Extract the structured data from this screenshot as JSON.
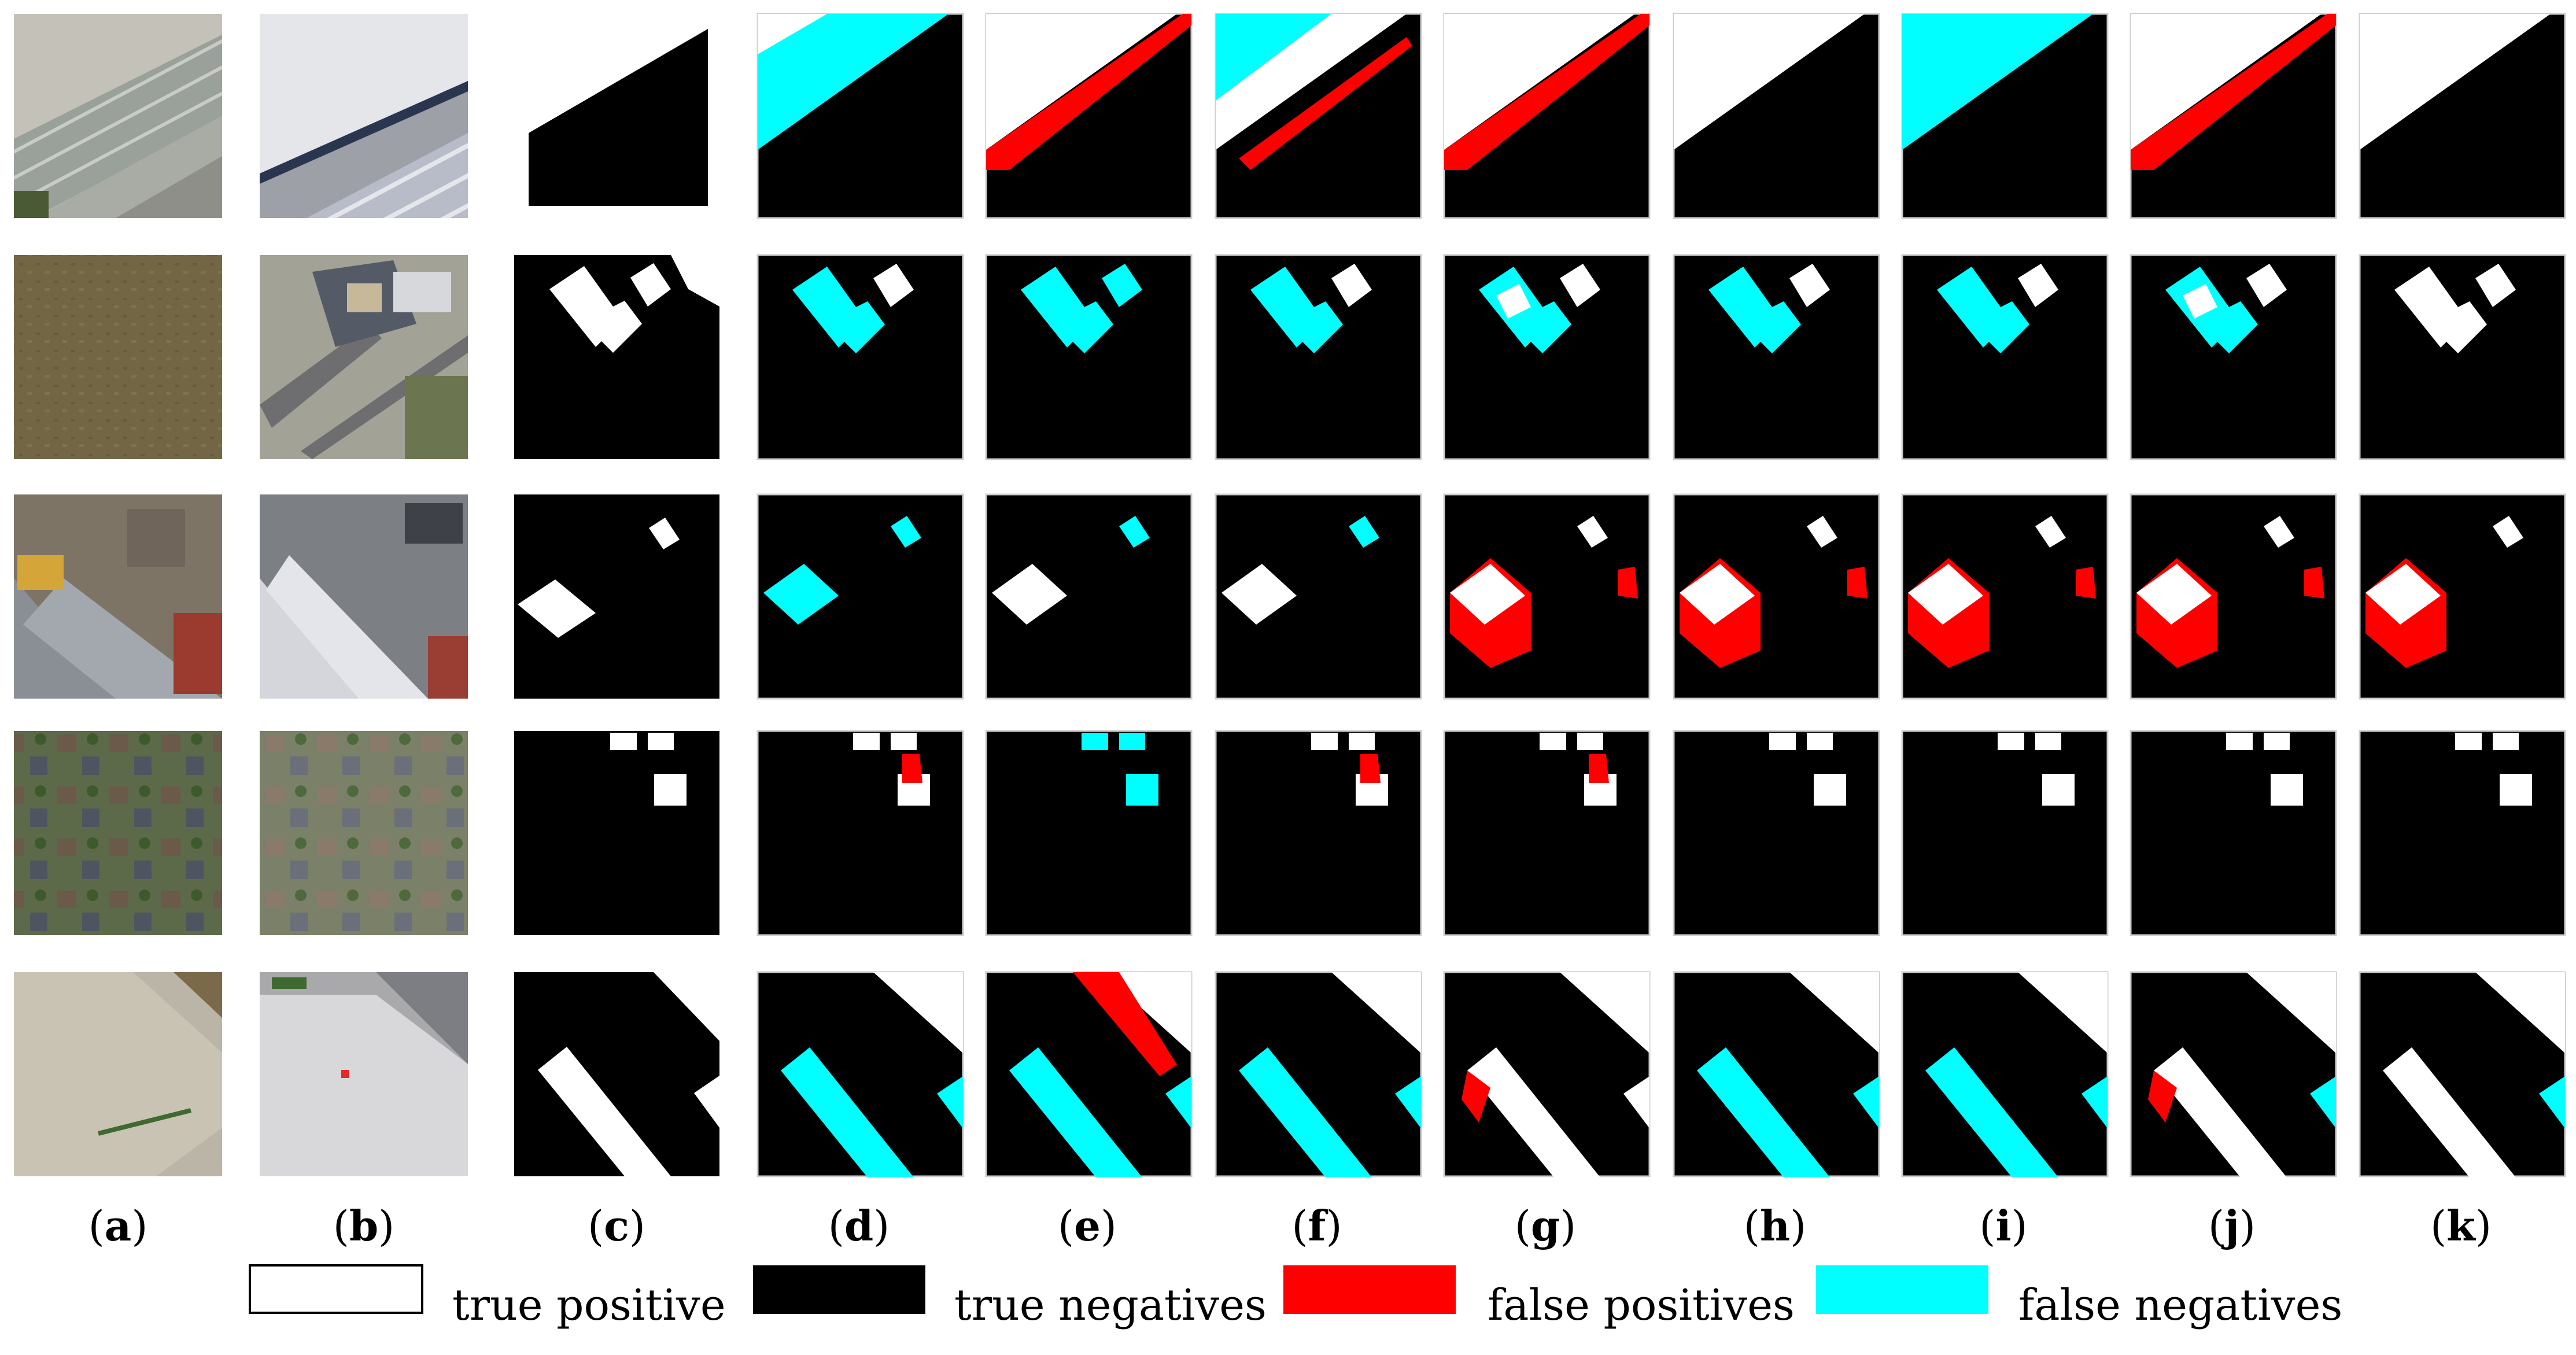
{
  "figure": {
    "rows": 5,
    "column_labels": [
      {
        "open": "(",
        "letter": "a",
        "close": ")"
      },
      {
        "open": "(",
        "letter": "b",
        "close": ")"
      },
      {
        "open": "(",
        "letter": "c",
        "close": ")"
      },
      {
        "open": "(",
        "letter": "d",
        "close": ")"
      },
      {
        "open": "(",
        "letter": "e",
        "close": ")"
      },
      {
        "open": "(",
        "letter": "f",
        "close": ")"
      },
      {
        "open": "(",
        "letter": "g",
        "close": ")"
      },
      {
        "open": "(",
        "letter": "h",
        "close": ")"
      },
      {
        "open": "(",
        "letter": "i",
        "close": ")"
      },
      {
        "open": "(",
        "letter": "j",
        "close": ")"
      },
      {
        "open": "(",
        "letter": "k",
        "close": ")"
      }
    ]
  },
  "legend": {
    "items": [
      {
        "label": "true positive",
        "color": "#ffffff"
      },
      {
        "label": "true negatives",
        "color": "#000000"
      },
      {
        "label": "false positives",
        "color": "#ff0000"
      },
      {
        "label": "false negatives",
        "color": "#00ffff"
      }
    ]
  },
  "colors": {
    "true_positive": "#ffffff",
    "true_negative": "#000000",
    "false_positive": "#ff0000",
    "false_negative": "#00ffff"
  }
}
